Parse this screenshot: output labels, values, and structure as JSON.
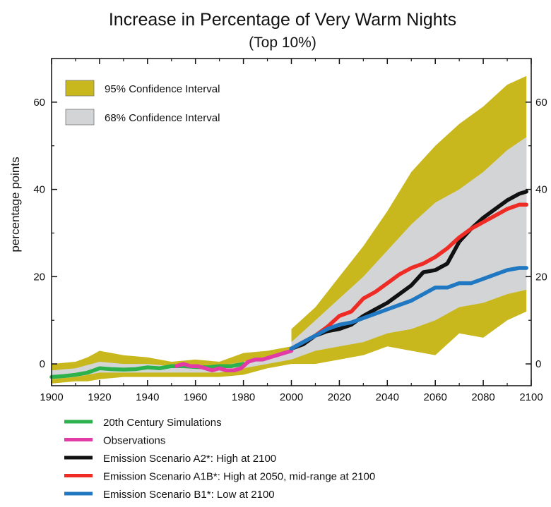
{
  "chart_data": {
    "type": "line",
    "title": "Increase in Percentage of Very Warm Nights",
    "subtitle": "(Top 10%)",
    "ylabel": "percentage points",
    "xlim": [
      1900,
      2100
    ],
    "ylim": [
      -5,
      70
    ],
    "x_ticks": [
      1900,
      1920,
      1940,
      1960,
      1980,
      2000,
      2020,
      2040,
      2060,
      2080,
      2100
    ],
    "y_ticks": [
      0,
      20,
      40,
      60
    ],
    "band_legend": [
      {
        "label": "95% Confidence Interval",
        "color": "#c9b81d"
      },
      {
        "label": "68% Confidence Interval",
        "color": "#d3d4d6"
      }
    ],
    "line_legend": [
      {
        "label": "20th Century Simulations",
        "color": "#2bb24c"
      },
      {
        "label": "Observations",
        "color": "#e23ba6"
      },
      {
        "label": "Emission Scenario A2*: High at 2100",
        "color": "#111111"
      },
      {
        "label": "Emission Scenario A1B*: High at 2050, mid-range at 2100",
        "color": "#ee2b24"
      },
      {
        "label": "Emission Scenario B1*: Low at 2100",
        "color": "#1f78c1"
      }
    ],
    "bands": {
      "hist95": {
        "color": "#c9b81d",
        "x": [
          1900,
          1910,
          1915,
          1920,
          1930,
          1940,
          1950,
          1960,
          1970,
          1980,
          1990,
          2000
        ],
        "upper": [
          0,
          0.5,
          1.5,
          3,
          2,
          1.5,
          0.5,
          1,
          0.5,
          2.5,
          3,
          4
        ],
        "lower": [
          -4.5,
          -4,
          -4,
          -3.5,
          -3,
          -3,
          -3,
          -3,
          -3,
          -2.5,
          -1,
          0
        ]
      },
      "hist68": {
        "color": "#d3d4d6",
        "x": [
          1900,
          1910,
          1920,
          1930,
          1940,
          1950,
          1960,
          1970,
          1980,
          1990,
          2000
        ],
        "upper": [
          -1.5,
          -1,
          0.5,
          0,
          0,
          -0.5,
          -0.5,
          -0.5,
          0.5,
          1.5,
          2.5
        ],
        "lower": [
          -3.5,
          -3,
          -2,
          -2,
          -2,
          -2,
          -2,
          -2,
          -1,
          0,
          1
        ]
      },
      "proj95": {
        "color": "#c9b81d",
        "x": [
          2000,
          2010,
          2020,
          2030,
          2040,
          2050,
          2060,
          2070,
          2080,
          2090,
          2098
        ],
        "upper": [
          8,
          13,
          20,
          27,
          35,
          44,
          50,
          55,
          59,
          64,
          66
        ],
        "lower": [
          0,
          0,
          1,
          2,
          4,
          3,
          2,
          7,
          6,
          10,
          12
        ]
      },
      "proj68": {
        "color": "#d3d4d6",
        "x": [
          2000,
          2010,
          2020,
          2030,
          2040,
          2050,
          2060,
          2070,
          2080,
          2090,
          2098
        ],
        "upper": [
          5,
          10,
          15,
          20,
          26,
          32,
          37,
          40,
          44,
          49,
          52
        ],
        "lower": [
          1,
          3,
          4,
          5,
          7,
          8,
          10,
          13,
          14,
          16,
          17
        ]
      }
    },
    "series": [
      {
        "name": "20th Century Simulations",
        "color": "#2bb24c",
        "x": [
          1900,
          1905,
          1910,
          1915,
          1920,
          1925,
          1930,
          1935,
          1940,
          1945,
          1950,
          1955,
          1960,
          1965,
          1970,
          1975,
          1980
        ],
        "values": [
          -3,
          -2.8,
          -2.5,
          -2,
          -1,
          -1.2,
          -1.3,
          -1.2,
          -0.8,
          -1,
          -0.5,
          -0.5,
          -0.7,
          -0.8,
          -0.5,
          -0.5,
          0
        ]
      },
      {
        "name": "Observations",
        "color": "#e23ba6",
        "x": [
          1952,
          1955,
          1958,
          1961,
          1964,
          1967,
          1970,
          1973,
          1976,
          1979,
          1982,
          1985,
          1988,
          1991,
          1994,
          1997,
          2000
        ],
        "values": [
          -0.5,
          0,
          -0.5,
          -0.5,
          -1,
          -1.5,
          -1,
          -1.5,
          -1.5,
          -1,
          0.5,
          1,
          1,
          1.5,
          2,
          2.5,
          3
        ]
      },
      {
        "name": "Emission Scenario A2*: High at 2100",
        "color": "#111111",
        "x": [
          2000,
          2005,
          2010,
          2015,
          2020,
          2025,
          2030,
          2035,
          2040,
          2045,
          2050,
          2055,
          2060,
          2065,
          2070,
          2075,
          2080,
          2085,
          2090,
          2095,
          2098
        ],
        "values": [
          3.5,
          4.5,
          6.5,
          7.5,
          8,
          9,
          11,
          12.5,
          14,
          16,
          18,
          21,
          21.5,
          23,
          28,
          31,
          33.5,
          35.5,
          37.5,
          39,
          39.5
        ]
      },
      {
        "name": "Emission Scenario A1B*: High at 2050, mid-range at 2100",
        "color": "#ee2b24",
        "x": [
          2000,
          2005,
          2010,
          2015,
          2020,
          2025,
          2030,
          2035,
          2040,
          2045,
          2050,
          2055,
          2060,
          2065,
          2070,
          2075,
          2080,
          2085,
          2090,
          2095,
          2098
        ],
        "values": [
          3.5,
          5,
          6.5,
          8.5,
          11,
          12,
          15,
          16.5,
          18.5,
          20.5,
          22,
          23,
          24.5,
          26.5,
          29,
          31,
          32.5,
          34,
          35.5,
          36.5,
          36.5
        ]
      },
      {
        "name": "Emission Scenario B1*: Low at 2100",
        "color": "#1f78c1",
        "x": [
          2000,
          2005,
          2010,
          2015,
          2020,
          2025,
          2030,
          2035,
          2040,
          2045,
          2050,
          2055,
          2060,
          2065,
          2070,
          2075,
          2080,
          2085,
          2090,
          2095,
          2098
        ],
        "values": [
          3.5,
          5,
          6.5,
          8,
          9,
          9.5,
          10.5,
          11.5,
          12.5,
          13.5,
          14.5,
          16,
          17.5,
          17.5,
          18.5,
          18.5,
          19.5,
          20.5,
          21.5,
          22,
          22
        ]
      }
    ]
  }
}
